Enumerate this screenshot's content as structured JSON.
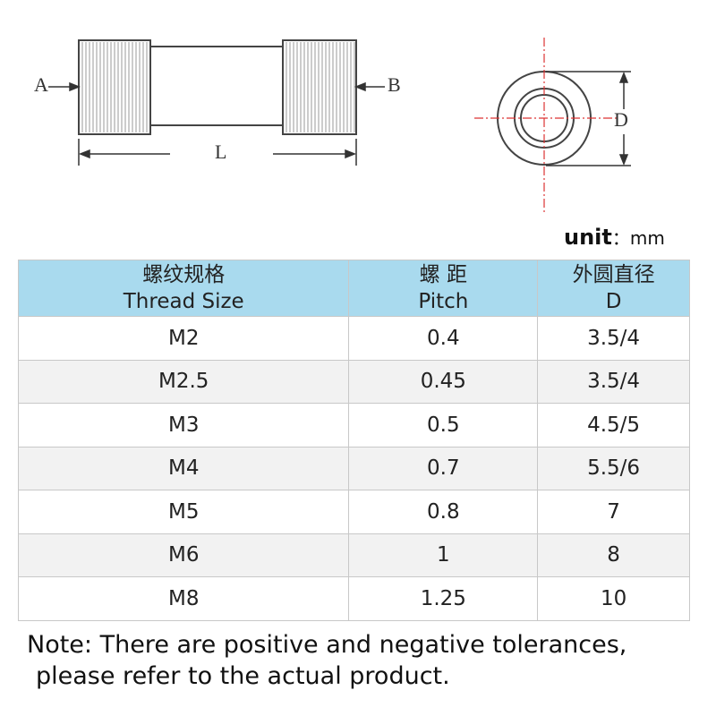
{
  "diagram": {
    "labels": {
      "a": "A",
      "b": "B",
      "l": "L",
      "d": "D"
    }
  },
  "unit": {
    "label": "unit",
    "value": "：mm"
  },
  "table": {
    "header": [
      {
        "zh": "螺纹规格",
        "en": "Thread Size"
      },
      {
        "zh": "螺 距",
        "en": "Pitch"
      },
      {
        "zh": "外圆直径",
        "en": "D"
      }
    ],
    "rows": [
      [
        "M2",
        "0.4",
        "3.5/4"
      ],
      [
        "M2.5",
        "0.45",
        "3.5/4"
      ],
      [
        "M3",
        "0.5",
        "4.5/5"
      ],
      [
        "M4",
        "0.7",
        "5.5/6"
      ],
      [
        "M5",
        "0.8",
        "7"
      ],
      [
        "M6",
        "1",
        "8"
      ],
      [
        "M8",
        "1.25",
        "10"
      ]
    ]
  },
  "note": [
    "Note: There are positive and negative tolerances,",
    "please refer to the actual product."
  ]
}
